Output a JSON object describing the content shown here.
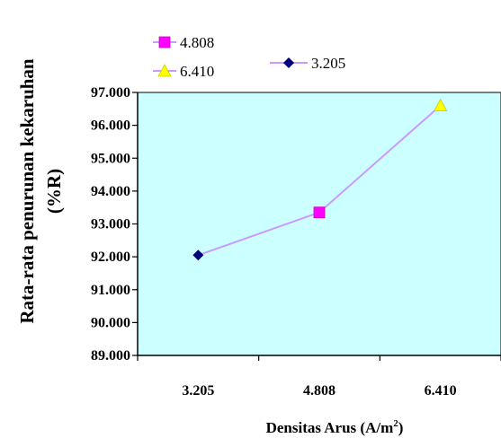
{
  "chart_data": {
    "type": "line",
    "categories": [
      "3.205",
      "4.808",
      "6.410"
    ],
    "values": [
      92.05,
      93.35,
      96.6
    ],
    "ylim": [
      89,
      97
    ],
    "yticks": [
      "89.000",
      "90.000",
      "91.000",
      "92.000",
      "93.000",
      "94.000",
      "95.000",
      "96.000",
      "97.000"
    ],
    "ylabel_line1": "Rata-rata penurunan kekaruhan",
    "ylabel_line2": "(%R)",
    "xlabel": "Densitas Arus (A/m",
    "xlabel_sup": "2",
    "xlabel_close": ")",
    "legend": [
      {
        "label": "4.808",
        "marker": "square",
        "color": "#ff00ff"
      },
      {
        "label": "6.410",
        "marker": "triangle",
        "color": "#ffff00"
      },
      {
        "label": "3.205",
        "marker": "diamond",
        "color": "#000080"
      }
    ],
    "point_markers": [
      "diamond",
      "square",
      "triangle"
    ],
    "point_colors": [
      "#000080",
      "#ff00ff",
      "#ffff00"
    ],
    "line_color": "#cc99ff",
    "plot_background": "#ccffff",
    "grid": false
  }
}
